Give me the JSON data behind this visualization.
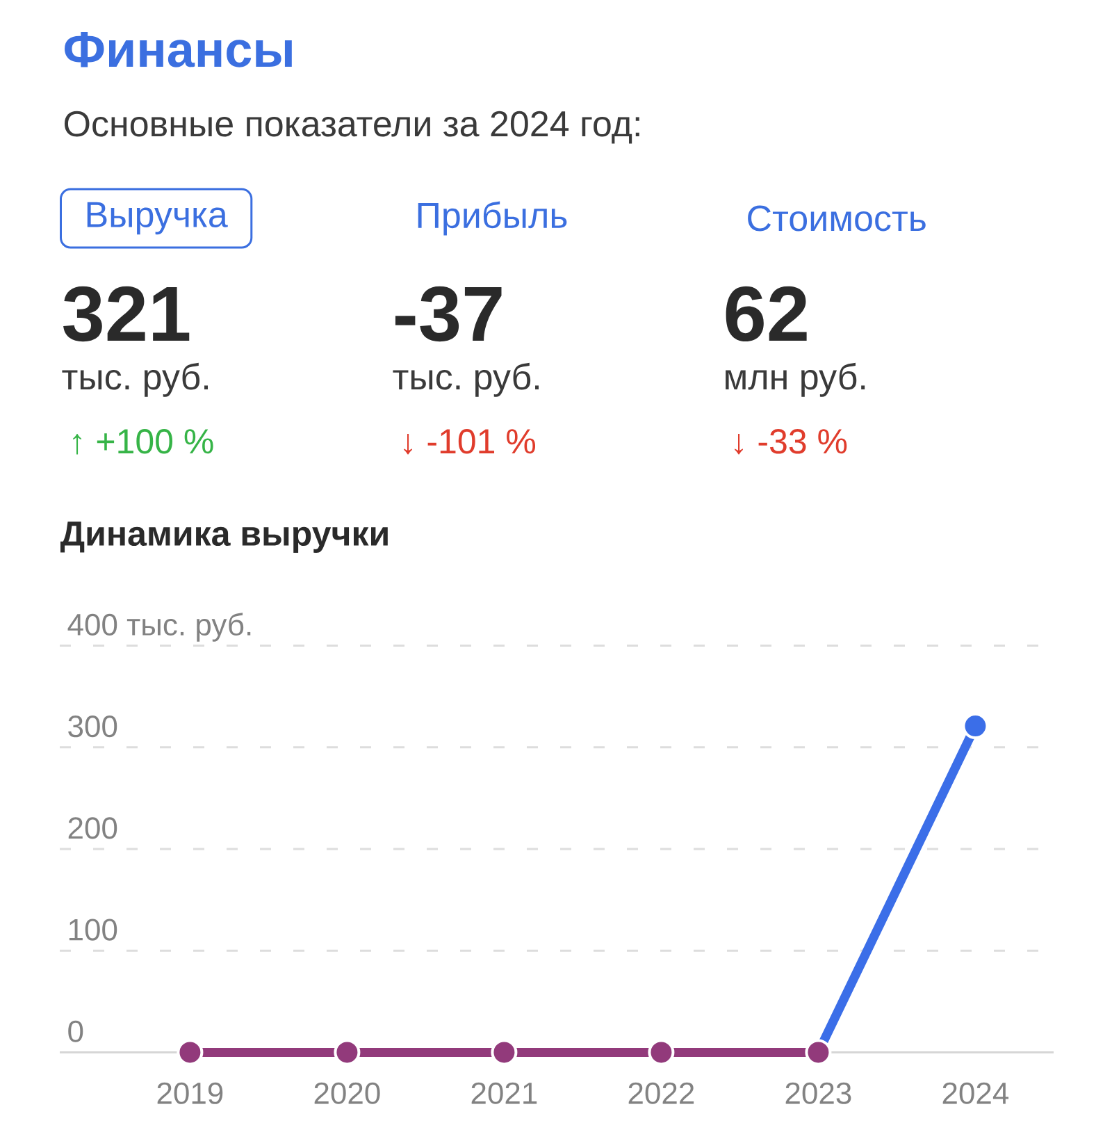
{
  "chart_data": [
    {
      "type": "other",
      "title": "Финансы",
      "subtitle": "Основные показатели за 2024 год:",
      "annotations": [
        "Выручка",
        "321",
        "тыс. руб.",
        "↑ +100 %",
        "Прибыль",
        "-37",
        "тыс. руб.",
        "↓ -101 %",
        "Стоимость",
        "62",
        "млн руб.",
        "↓ -33 %"
      ]
    },
    {
      "type": "line",
      "title": "Динамика выручки",
      "categories": [
        "2019",
        "2020",
        "2021",
        "2022",
        "2023",
        "2024"
      ],
      "series": [
        {
          "color": "#3b6ee8",
          "values": [
            null,
            null,
            null,
            null,
            0,
            321
          ]
        },
        {
          "color": "#923a7b",
          "values": [
            0,
            0,
            0,
            0,
            0,
            null
          ]
        }
      ],
      "ylim": [
        0,
        400
      ],
      "yticks": [
        0,
        100,
        200,
        300,
        {
          "value": 400,
          "label": "400 тыс. руб."
        }
      ],
      "grid": "y",
      "marker": "circle",
      "line_style": "solid"
    }
  ]
}
